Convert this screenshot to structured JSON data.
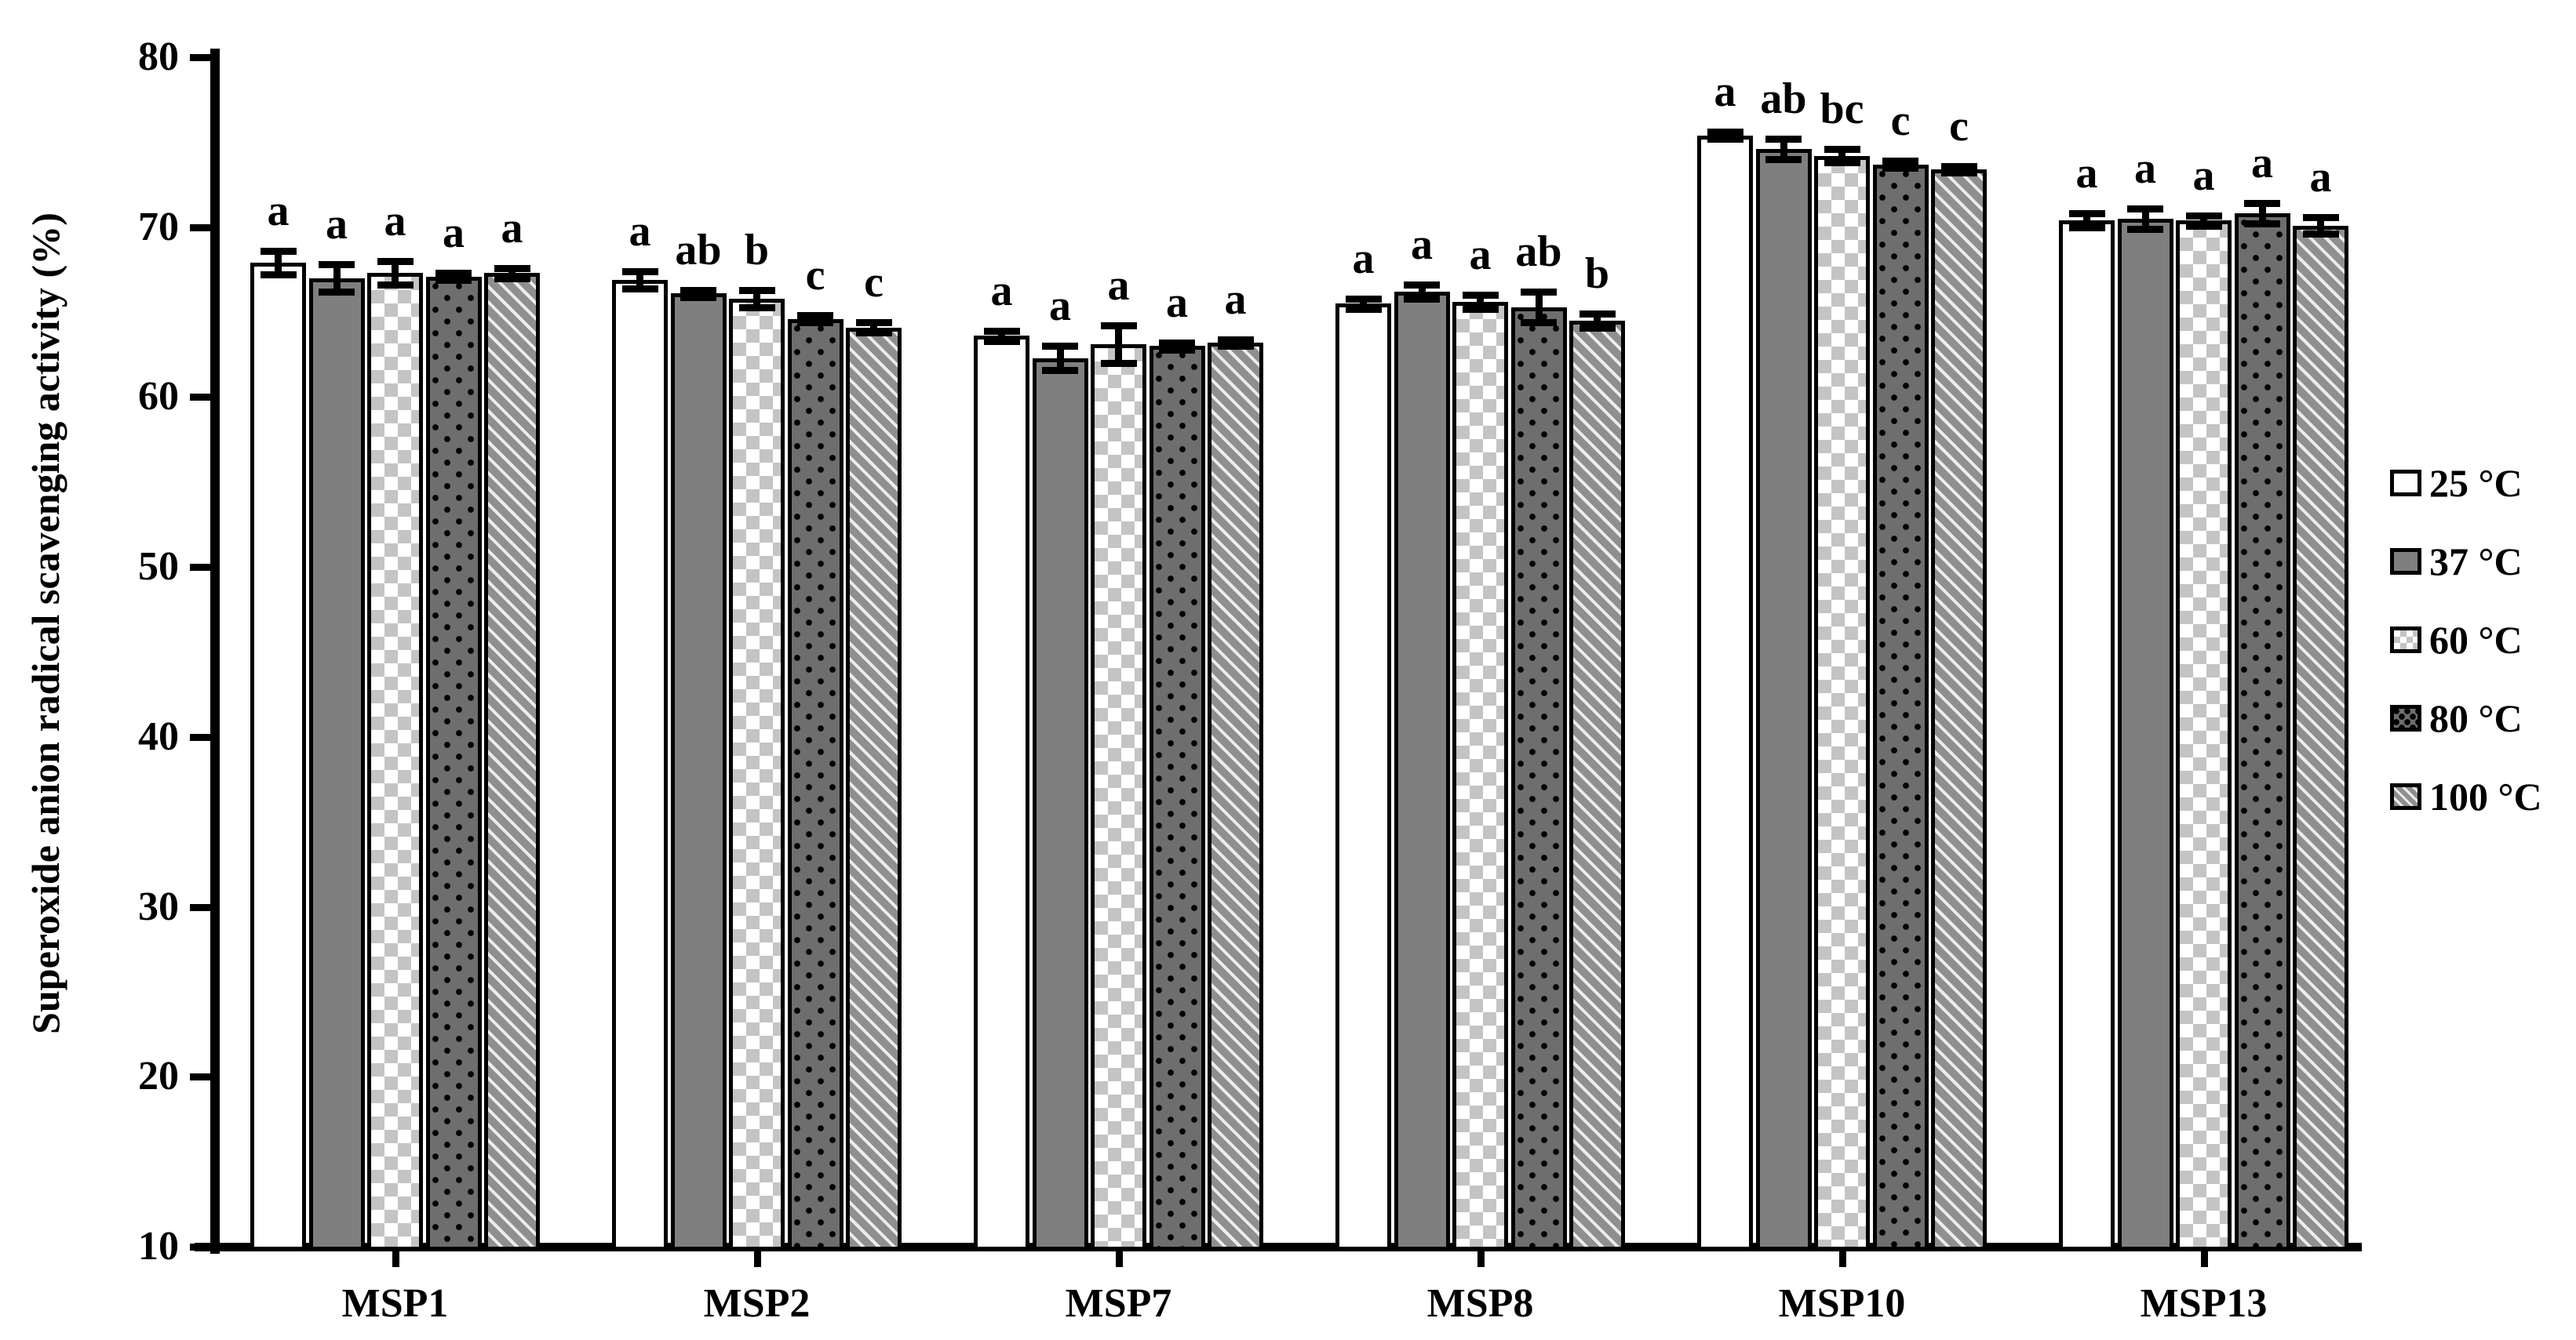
{
  "figure": {
    "background": "#ffffff",
    "ink_color": "#000000"
  },
  "chart_data": {
    "type": "bar",
    "title": "",
    "xlabel": "",
    "ylabel": "Superoxide anion radical scavenging activity (%)",
    "ylim": [
      10,
      80
    ],
    "yticks": [
      10,
      20,
      30,
      40,
      50,
      60,
      70,
      80
    ],
    "grid": false,
    "legend_position": "right",
    "error_bars": true,
    "categories": [
      "MSP1",
      "MSP2",
      "MSP7",
      "MSP8",
      "MSP10",
      "MSP13"
    ],
    "series": [
      {
        "name": "25 °C",
        "pattern": "white",
        "values": [
          67.9,
          66.9,
          63.6,
          65.5,
          75.4,
          70.4
        ],
        "errors": [
          0.7,
          0.5,
          0.3,
          0.3,
          0.2,
          0.4
        ],
        "letters": [
          "a",
          "a",
          "a",
          "a",
          "a",
          "a"
        ]
      },
      {
        "name": "37 °C",
        "pattern": "solid-gray",
        "values": [
          67.0,
          66.1,
          62.3,
          66.2,
          74.6,
          70.5
        ],
        "errors": [
          0.8,
          0.2,
          0.7,
          0.4,
          0.6,
          0.6
        ],
        "letters": [
          "a",
          "ab",
          "a",
          "a",
          "ab",
          "a"
        ]
      },
      {
        "name": "60 °C",
        "pattern": "checkerboard",
        "values": [
          67.3,
          65.8,
          63.1,
          65.6,
          74.2,
          70.4
        ],
        "errors": [
          0.7,
          0.5,
          1.1,
          0.4,
          0.4,
          0.3
        ],
        "letters": [
          "a",
          "b",
          "a",
          "a",
          "bc",
          "a"
        ]
      },
      {
        "name": "80 °C",
        "pattern": "black-dots",
        "values": [
          67.1,
          64.6,
          63.0,
          65.3,
          73.7,
          70.8
        ],
        "errors": [
          0.2,
          0.2,
          0.2,
          0.9,
          0.2,
          0.6
        ],
        "letters": [
          "a",
          "c",
          "a",
          "ab",
          "c",
          "a"
        ]
      },
      {
        "name": "100 °C",
        "pattern": "diagonal-hatch",
        "values": [
          67.3,
          64.1,
          63.2,
          64.5,
          73.4,
          70.1
        ],
        "errors": [
          0.3,
          0.3,
          0.2,
          0.4,
          0.2,
          0.5
        ],
        "letters": [
          "a",
          "c",
          "a",
          "b",
          "c",
          "a"
        ]
      }
    ],
    "colors": {
      "solid_gray": "#7f7f7f",
      "checker_gray": "#c4c4c4",
      "dots_background": "#6e6e6e",
      "hatch_background": "#8f8f8f",
      "hatch_stripe": "#ececec",
      "ink": "#000000"
    }
  }
}
